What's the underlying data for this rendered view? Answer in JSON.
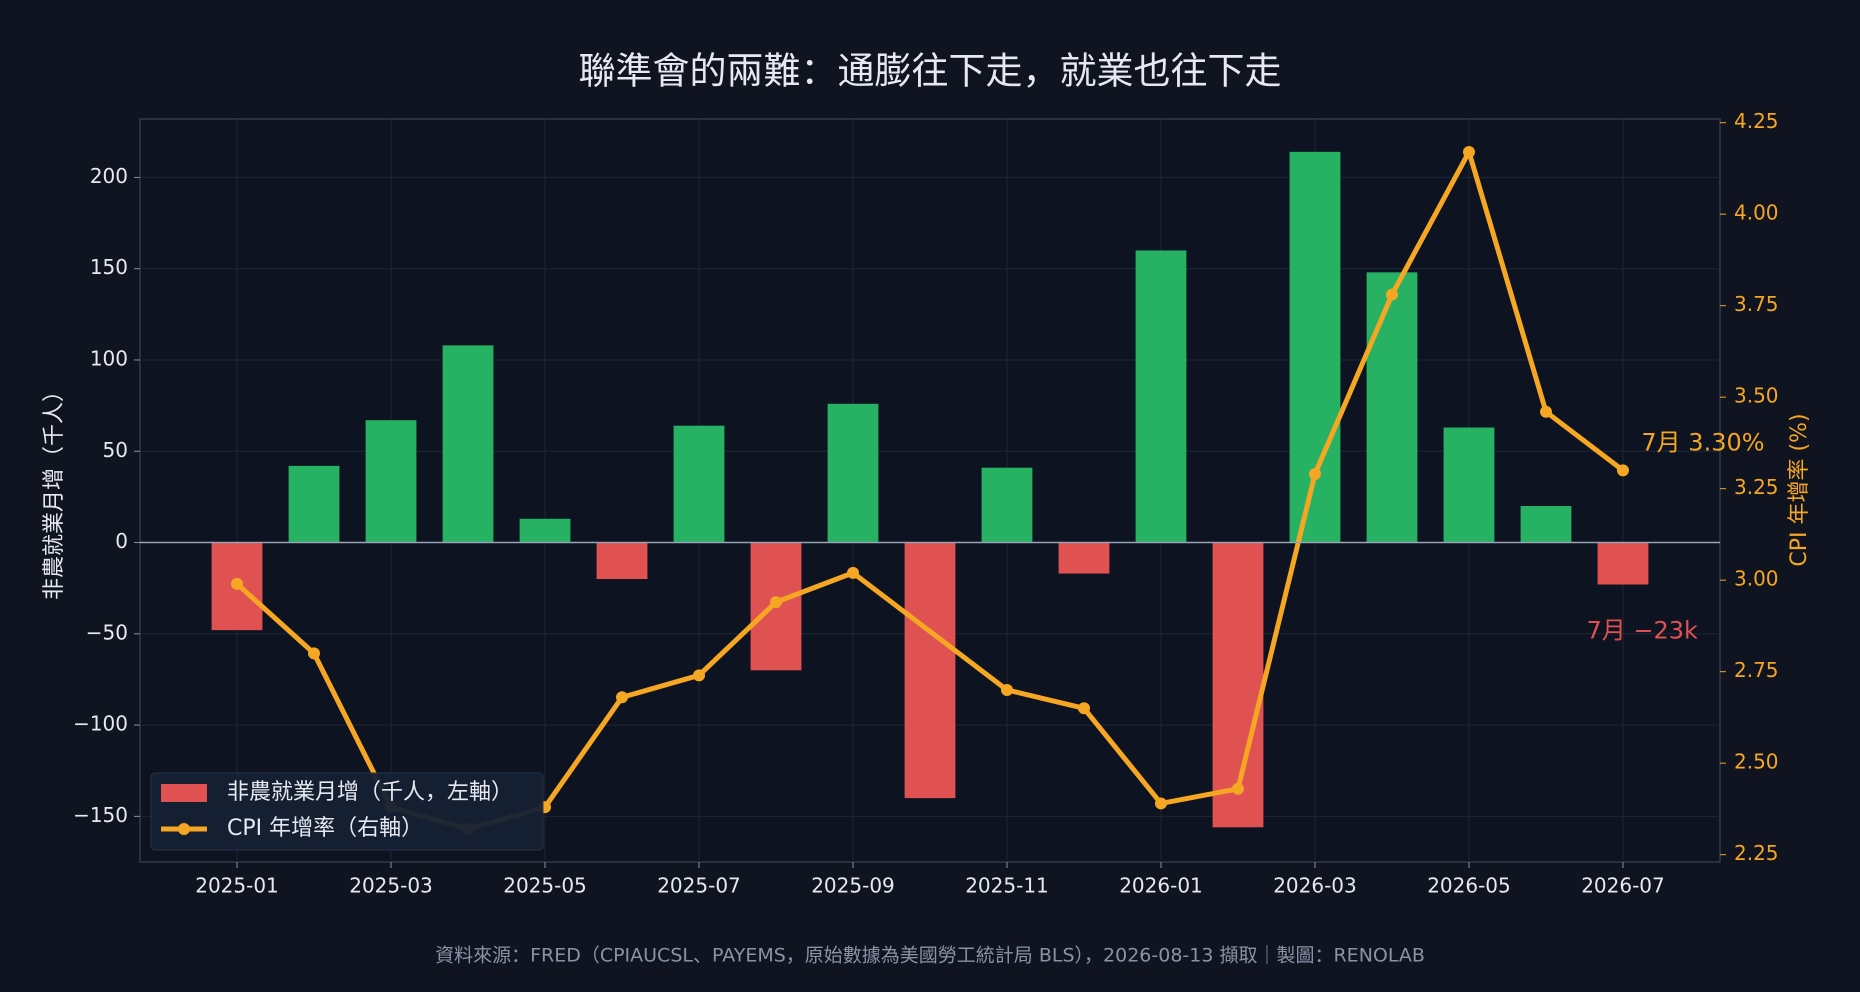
{
  "chart_data": {
    "type": "bar_line",
    "title": "聯準會的兩難：通膨往下走，就業也往下走",
    "source": "資料來源：FRED（CPIAUCSL、PAYEMS，原始數據為美國勞工統計局 BLS），2026-08-13 擷取｜製圖：RENOLAB",
    "ylabel": "非農就業月增（千人）",
    "y2label": "CPI 年增率 (%)",
    "categories": [
      "2025-01",
      null,
      "2025-03",
      null,
      "2025-05",
      null,
      "2025-07",
      null,
      "2025-09",
      null,
      "2025-11",
      null,
      "2026-01",
      null,
      "2026-03",
      null,
      "2026-05",
      null,
      "2026-07"
    ],
    "series": [
      {
        "name": "非農就業月增（千人，左軸）",
        "type": "bar",
        "positive_color": "#27b163",
        "negative_color": "#e05252",
        "values": [
          -48,
          42,
          67,
          108,
          13,
          -20,
          64,
          -70,
          76,
          -140,
          41,
          -17,
          160,
          -156,
          214,
          148,
          63,
          20,
          -23
        ]
      },
      {
        "name": "CPI 年增率（右軸）",
        "type": "line",
        "axis": "y2",
        "color": "#f5a623",
        "connect_gaps": true,
        "values": [
          2.99,
          2.8,
          2.38,
          2.32,
          2.38,
          2.68,
          2.74,
          2.94,
          3.02,
          null,
          2.7,
          2.65,
          2.39,
          2.43,
          3.29,
          3.78,
          4.17,
          3.46,
          3.3
        ]
      }
    ],
    "annotations": [
      {
        "text": "7月 3.30%",
        "series": 1,
        "index": 18,
        "color": "#f5a623"
      },
      {
        "text": "7月 −23k",
        "series": 0,
        "index": 18,
        "color": "#e05252"
      }
    ],
    "ylim": [
      -175,
      232
    ],
    "yticks": [
      {
        "value": -150,
        "label": "−150"
      },
      {
        "value": -100,
        "label": "−100"
      },
      {
        "value": -50,
        "label": "−50"
      },
      0,
      50,
      100,
      150,
      200
    ],
    "y2lim": [
      2.23,
      4.26
    ],
    "y2ticks": [
      2.25,
      {
        "value": 2.5,
        "label": "2.50"
      },
      2.75,
      {
        "value": 3,
        "label": "3.00"
      },
      3.25,
      {
        "value": 3.5,
        "label": "3.50"
      },
      3.75,
      {
        "value": 4,
        "label": "4.00"
      },
      4.25
    ],
    "grid": true,
    "legend": "lower left"
  }
}
